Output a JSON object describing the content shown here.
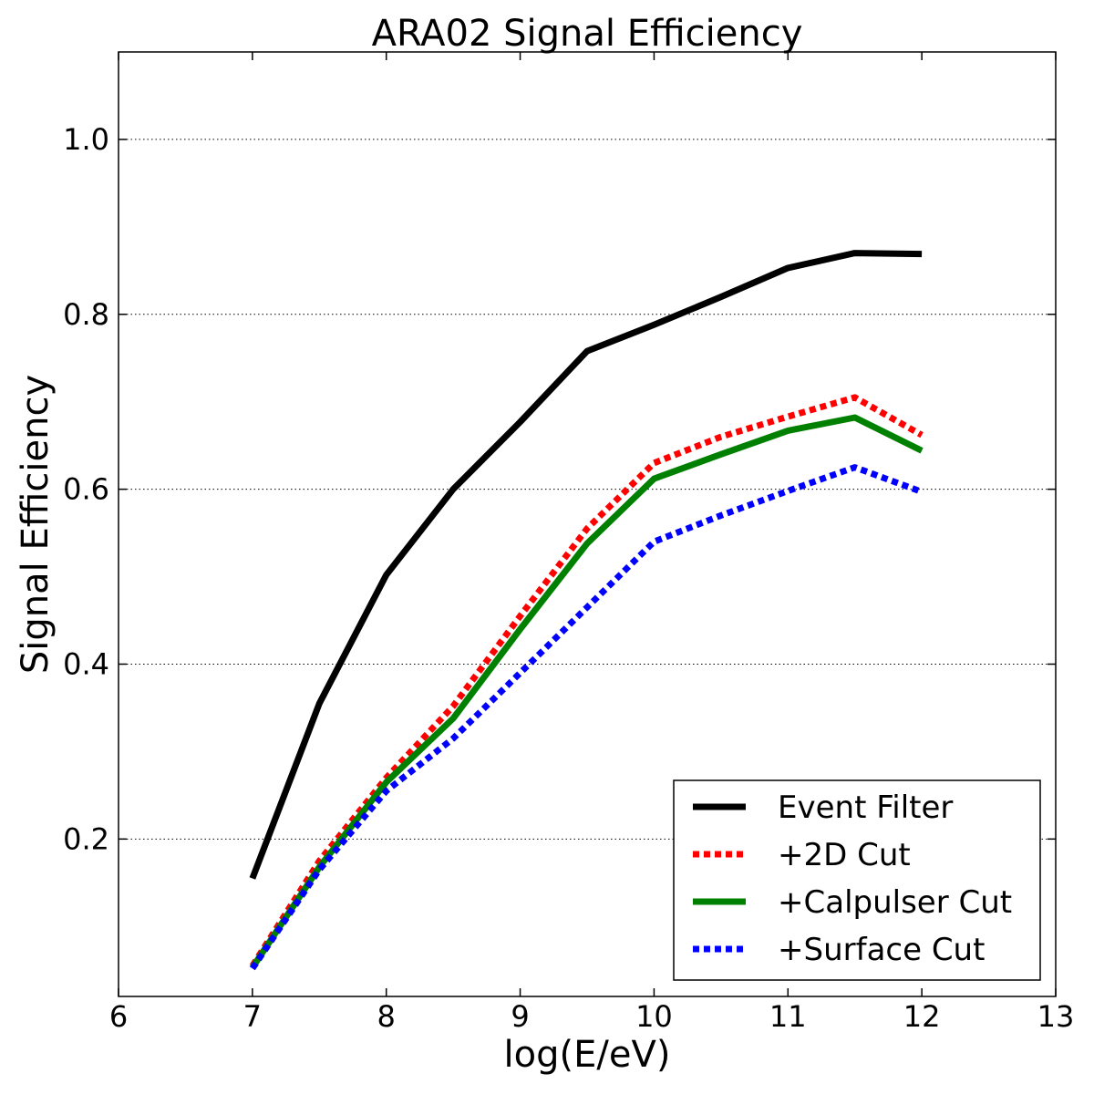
{
  "chart_data": {
    "type": "line",
    "title": "ARA02 Signal Efficiency",
    "xlabel": "log(E/eV)",
    "ylabel": "Signal Efficiency",
    "xlim": [
      6,
      13
    ],
    "ylim": [
      0.02,
      1.1
    ],
    "x_ticks": [
      6,
      7,
      8,
      9,
      10,
      11,
      12,
      13
    ],
    "y_ticks": [
      0.2,
      0.4,
      0.6,
      0.8,
      1.0
    ],
    "y_tick_labels": [
      "0.2",
      "0.4",
      "0.6",
      "0.8",
      "1.0"
    ],
    "grid": "horizontal dotted",
    "legend_position": "bottom-right",
    "x": [
      7,
      7.5,
      8,
      8.5,
      9,
      9.5,
      10,
      10.5,
      11,
      11.5,
      12
    ],
    "series": [
      {
        "name": "Event Filter",
        "color": "#000000",
        "style": "solid",
        "values": [
          0.155,
          0.355,
          0.502,
          0.6,
          0.677,
          0.758,
          0.788,
          0.82,
          0.853,
          0.87,
          0.869
        ]
      },
      {
        "name": "+2D Cut",
        "color": "#ff0000",
        "style": "dotted",
        "values": [
          0.055,
          0.175,
          0.27,
          0.352,
          0.455,
          0.555,
          0.63,
          0.66,
          0.683,
          0.705,
          0.662
        ]
      },
      {
        "name": "+Calpulser Cut",
        "color": "#008000",
        "style": "solid",
        "values": [
          0.053,
          0.168,
          0.265,
          0.338,
          0.44,
          0.538,
          0.612,
          0.64,
          0.667,
          0.682,
          0.644
        ]
      },
      {
        "name": "+Surface Cut",
        "color": "#0000ff",
        "style": "dotted",
        "values": [
          0.052,
          0.165,
          0.255,
          0.315,
          0.39,
          0.465,
          0.54,
          0.57,
          0.598,
          0.625,
          0.597
        ]
      }
    ]
  }
}
